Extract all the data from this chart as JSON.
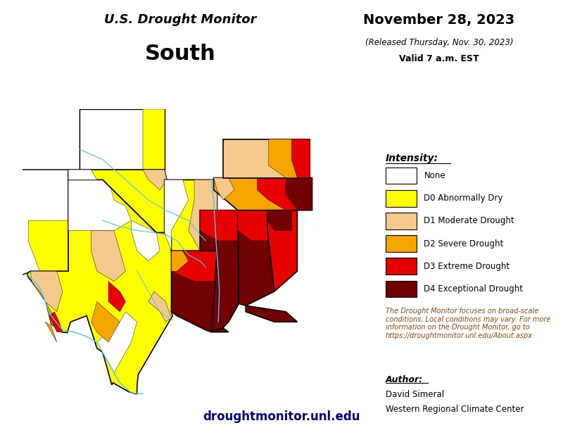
{
  "title_line1": "U.S. Drought Monitor",
  "title_line2": "South",
  "date_main": "November 28, 2023",
  "date_released": "(Released Thursday, Nov. 30, 2023)",
  "date_valid": "Valid 7 a.m. EST",
  "legend_title": "Intensity:",
  "legend_items": [
    {
      "label": "None",
      "color": "#FFFFFF"
    },
    {
      "label": "D0 Abnormally Dry",
      "color": "#FFFF00"
    },
    {
      "label": "D1 Moderate Drought",
      "color": "#F5C88C"
    },
    {
      "label": "D2 Severe Drought",
      "color": "#F5A500"
    },
    {
      "label": "D3 Extreme Drought",
      "color": "#E60000"
    },
    {
      "label": "D4 Exceptional Drought",
      "color": "#730000"
    }
  ],
  "note_text": "The Drought Monitor focuses on broad-scale\nconditions. Local conditions may vary. For more\ninformation on the Drought Monitor, go to\nhttps://droughtmonitor.unl.edu/About.aspx",
  "author_label": "Author:",
  "author_name": "David Simeral",
  "author_org": "Western Regional Climate Center",
  "website": "droughtmonitor.unl.edu",
  "bg_color": "#FFFFFF",
  "title_color": "#000000",
  "note_color": "#8B4513",
  "website_color": "#000080",
  "river_color": "#4FC3F7",
  "map_xlim": [
    -107,
    -77
  ],
  "map_ylim": [
    25,
    40
  ]
}
